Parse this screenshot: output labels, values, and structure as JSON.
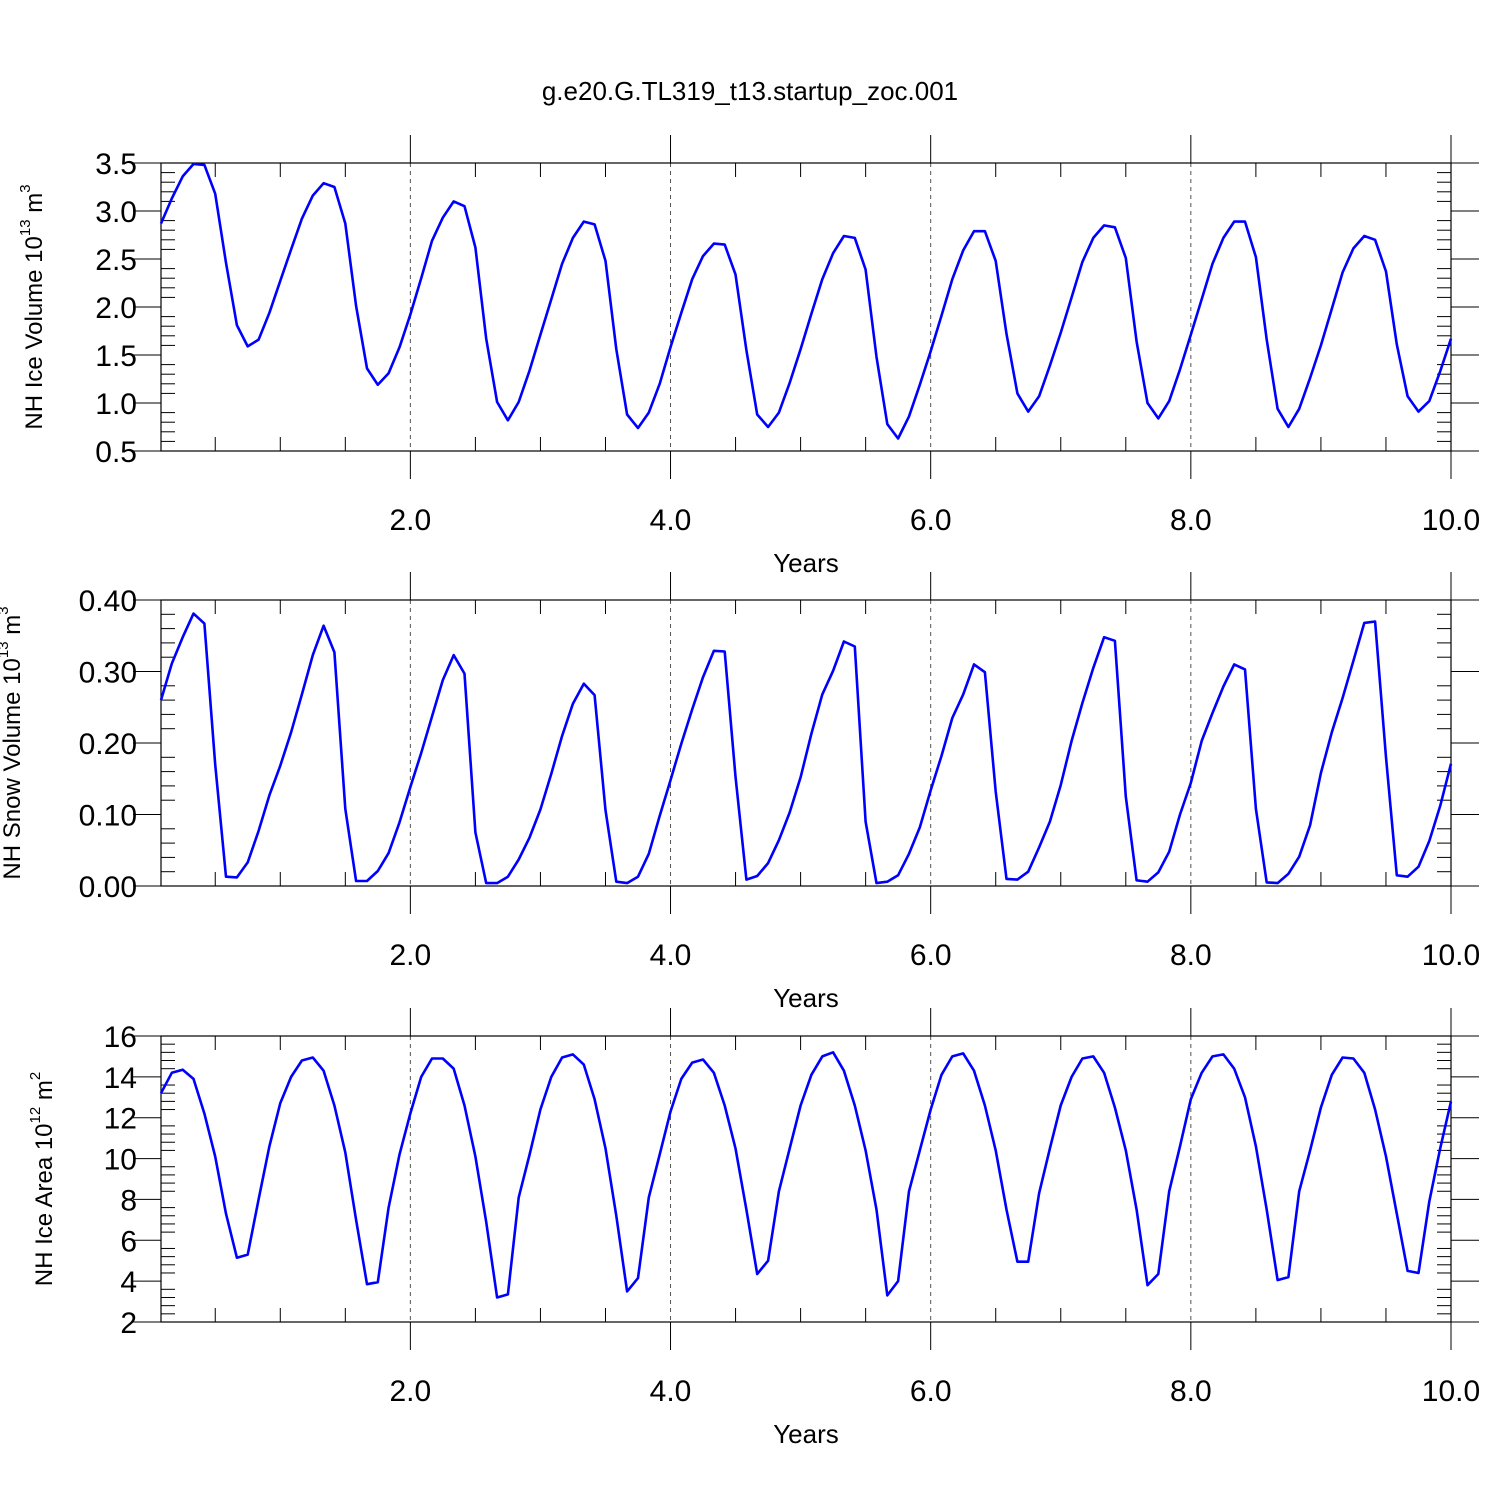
{
  "title": "g.e20.G.TL319_t13.startup_zoc.001",
  "line_color": "#0000ff",
  "chart_data": [
    {
      "type": "line",
      "xlabel": "Years",
      "ylabel": {
        "base": "NH Ice Volume 10",
        "exp": "13",
        "unit": " m",
        "unit_exp": "3"
      },
      "xlim": [
        0.083,
        10.0
      ],
      "ylim": [
        0.5,
        3.5
      ],
      "xticks": [
        2,
        4,
        6,
        8,
        10
      ],
      "xtick_labels": [
        "2.0",
        "4.0",
        "6.0",
        "8.0",
        "10.0"
      ],
      "yticks": [
        0.5,
        1.0,
        1.5,
        2.0,
        2.5,
        3.0,
        3.5
      ],
      "ytick_labels": [
        "0.5",
        "1.0",
        "1.5",
        "2.0",
        "2.5",
        "3.0",
        "3.5"
      ],
      "grid": "vertical dashed at major x ticks",
      "series": [
        {
          "values": [
            2.87,
            3.13,
            3.36,
            3.49,
            3.48,
            3.18,
            2.46,
            1.81,
            1.59,
            1.66,
            1.94,
            2.27,
            2.6,
            2.92,
            3.16,
            3.29,
            3.25,
            2.87,
            2.01,
            1.36,
            1.19,
            1.31,
            1.58,
            1.92,
            2.3,
            2.69,
            2.93,
            3.1,
            3.05,
            2.62,
            1.67,
            1.01,
            0.82,
            1.01,
            1.34,
            1.71,
            2.08,
            2.45,
            2.72,
            2.89,
            2.86,
            2.48,
            1.56,
            0.88,
            0.74,
            0.9,
            1.2,
            1.58,
            1.94,
            2.29,
            2.53,
            2.66,
            2.65,
            2.34,
            1.55,
            0.88,
            0.75,
            0.9,
            1.21,
            1.56,
            1.93,
            2.29,
            2.56,
            2.74,
            2.72,
            2.39,
            1.48,
            0.78,
            0.63,
            0.86,
            1.19,
            1.54,
            1.91,
            2.29,
            2.59,
            2.79,
            2.79,
            2.48,
            1.72,
            1.1,
            0.91,
            1.07,
            1.39,
            1.73,
            2.1,
            2.47,
            2.72,
            2.85,
            2.83,
            2.51,
            1.64,
            1.0,
            0.84,
            1.02,
            1.35,
            1.71,
            2.08,
            2.45,
            2.72,
            2.89,
            2.89,
            2.52,
            1.66,
            0.94,
            0.75,
            0.94,
            1.26,
            1.6,
            1.98,
            2.36,
            2.61,
            2.74,
            2.7,
            2.37,
            1.61,
            1.07,
            0.91,
            1.02,
            1.33,
            1.67
          ]
        }
      ]
    },
    {
      "type": "line",
      "xlabel": "Years",
      "ylabel": {
        "base": "NH Snow Volume 10",
        "exp": "13",
        "unit": " m",
        "unit_exp": "3"
      },
      "xlim": [
        0.083,
        10.0
      ],
      "ylim": [
        0.0,
        0.4
      ],
      "xticks": [
        2,
        4,
        6,
        8,
        10
      ],
      "xtick_labels": [
        "2.0",
        "4.0",
        "6.0",
        "8.0",
        "10.0"
      ],
      "yticks": [
        0.0,
        0.1,
        0.2,
        0.3,
        0.4
      ],
      "ytick_labels": [
        "0.00",
        "0.10",
        "0.20",
        "0.30",
        "0.40"
      ],
      "grid": "vertical dashed at major x ticks",
      "series": [
        {
          "values": [
            0.26,
            0.311,
            0.348,
            0.381,
            0.367,
            0.17,
            0.013,
            0.012,
            0.033,
            0.077,
            0.127,
            0.168,
            0.215,
            0.268,
            0.323,
            0.364,
            0.327,
            0.108,
            0.007,
            0.007,
            0.021,
            0.046,
            0.089,
            0.138,
            0.186,
            0.237,
            0.288,
            0.323,
            0.297,
            0.075,
            0.004,
            0.004,
            0.013,
            0.037,
            0.068,
            0.107,
            0.157,
            0.21,
            0.255,
            0.283,
            0.267,
            0.106,
            0.006,
            0.004,
            0.013,
            0.045,
            0.098,
            0.148,
            0.199,
            0.247,
            0.292,
            0.329,
            0.328,
            0.153,
            0.009,
            0.014,
            0.032,
            0.064,
            0.103,
            0.152,
            0.213,
            0.268,
            0.301,
            0.342,
            0.335,
            0.09,
            0.004,
            0.006,
            0.015,
            0.045,
            0.082,
            0.134,
            0.182,
            0.235,
            0.268,
            0.31,
            0.299,
            0.132,
            0.01,
            0.009,
            0.02,
            0.054,
            0.09,
            0.141,
            0.203,
            0.256,
            0.305,
            0.348,
            0.343,
            0.125,
            0.008,
            0.006,
            0.019,
            0.048,
            0.1,
            0.144,
            0.203,
            0.242,
            0.279,
            0.31,
            0.303,
            0.108,
            0.005,
            0.004,
            0.017,
            0.041,
            0.085,
            0.158,
            0.215,
            0.263,
            0.315,
            0.368,
            0.37,
            0.18,
            0.015,
            0.013,
            0.027,
            0.063,
            0.112,
            0.171
          ]
        }
      ]
    },
    {
      "type": "line",
      "xlabel": "Years",
      "ylabel": {
        "base": "NH Ice Area 10",
        "exp": "12",
        "unit": " m",
        "unit_exp": "2"
      },
      "xlim": [
        0.083,
        10.0
      ],
      "ylim": [
        2,
        16
      ],
      "xticks": [
        2,
        4,
        6,
        8,
        10
      ],
      "xtick_labels": [
        "2.0",
        "4.0",
        "6.0",
        "8.0",
        "10.0"
      ],
      "yticks": [
        2,
        4,
        6,
        8,
        10,
        12,
        14,
        16
      ],
      "ytick_labels": [
        "2",
        "4",
        "6",
        "8",
        "10",
        "12",
        "14",
        "16"
      ],
      "grid": "vertical dashed at major x ticks",
      "series": [
        {
          "values": [
            13.2,
            14.2,
            14.35,
            13.9,
            12.2,
            10.1,
            7.3,
            5.15,
            5.3,
            8.0,
            10.6,
            12.7,
            14.0,
            14.8,
            14.95,
            14.3,
            12.6,
            10.3,
            7.0,
            3.85,
            3.95,
            7.6,
            10.2,
            12.2,
            14.0,
            14.9,
            14.9,
            14.4,
            12.6,
            10.1,
            6.9,
            3.2,
            3.35,
            8.1,
            10.2,
            12.4,
            14.0,
            14.95,
            15.1,
            14.6,
            12.9,
            10.5,
            7.2,
            3.5,
            4.15,
            8.1,
            10.2,
            12.3,
            13.9,
            14.7,
            14.85,
            14.2,
            12.6,
            10.5,
            7.5,
            4.35,
            5.0,
            8.4,
            10.5,
            12.6,
            14.1,
            15.0,
            15.2,
            14.3,
            12.6,
            10.4,
            7.5,
            3.3,
            4.0,
            8.4,
            10.4,
            12.4,
            14.1,
            15.0,
            15.15,
            14.3,
            12.6,
            10.4,
            7.5,
            4.95,
            4.95,
            8.3,
            10.5,
            12.6,
            14.0,
            14.9,
            15.0,
            14.2,
            12.5,
            10.4,
            7.5,
            3.8,
            4.35,
            8.4,
            10.6,
            12.9,
            14.2,
            15.0,
            15.1,
            14.4,
            13.0,
            10.6,
            7.5,
            4.05,
            4.2,
            8.4,
            10.4,
            12.5,
            14.1,
            14.95,
            14.9,
            14.2,
            12.4,
            10.1,
            7.3,
            4.5,
            4.4,
            7.9,
            10.5,
            12.8
          ]
        }
      ]
    }
  ]
}
